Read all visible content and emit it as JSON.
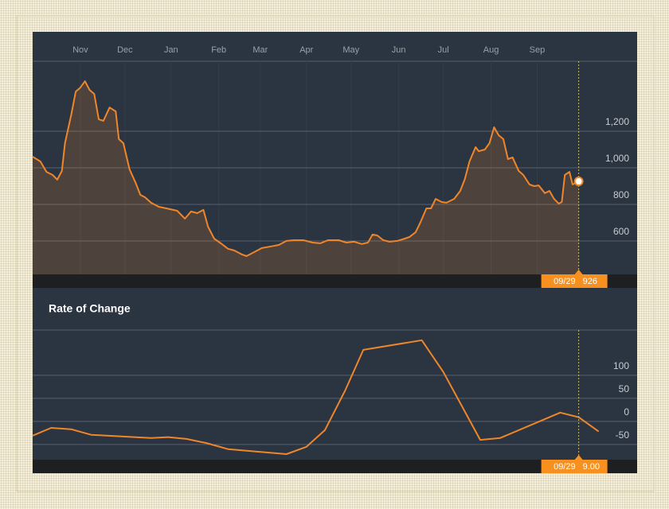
{
  "chart_data": [
    {
      "type": "line",
      "xlim": [
        0,
        393
      ],
      "ylim": [
        417,
        1583
      ],
      "xticks": [
        {
          "value": 31,
          "label": "Nov"
        },
        {
          "value": 60,
          "label": "Dec"
        },
        {
          "value": 90,
          "label": "Jan"
        },
        {
          "value": 121,
          "label": "Feb"
        },
        {
          "value": 148,
          "label": "Mar"
        },
        {
          "value": 178,
          "label": "Apr"
        },
        {
          "value": 207,
          "label": "May"
        },
        {
          "value": 238,
          "label": "Jun"
        },
        {
          "value": 267,
          "label": "Jul"
        },
        {
          "value": 298,
          "label": "Aug"
        },
        {
          "value": 328,
          "label": "Sep"
        }
      ],
      "yticks": [
        600,
        800,
        {
          "value": 1000,
          "label": "1,000"
        },
        {
          "value": 1200,
          "label": "1,200"
        }
      ],
      "grid": true,
      "series": [
        {
          "color": "#f0862a",
          "x": [
            0,
            5,
            9,
            13,
            16,
            19,
            21,
            25,
            28,
            31,
            34,
            37,
            40,
            43,
            46,
            50,
            54,
            56,
            59,
            63,
            67,
            70,
            73,
            77,
            82,
            87,
            94,
            99,
            103,
            107,
            111,
            114,
            118,
            123,
            127,
            131,
            136,
            139,
            144,
            149,
            155,
            160,
            165,
            170,
            176,
            182,
            187,
            192,
            199,
            204,
            209,
            214,
            218,
            221,
            224,
            228,
            232,
            237,
            242,
            245,
            249,
            252,
            256,
            259,
            262,
            266,
            269,
            274,
            278,
            281,
            284,
            288,
            290,
            294,
            297,
            300,
            303,
            306,
            309,
            312,
            316,
            319,
            323,
            326,
            329,
            333,
            336,
            339,
            342,
            344,
            346,
            349,
            351,
            355
          ],
          "values": [
            1061,
            1035,
            978,
            961,
            935,
            983,
            1135,
            1287,
            1417,
            1439,
            1474,
            1426,
            1404,
            1265,
            1257,
            1330,
            1309,
            1157,
            1135,
            991,
            917,
            852,
            839,
            809,
            787,
            778,
            765,
            722,
            761,
            752,
            770,
            678,
            613,
            583,
            557,
            548,
            526,
            517,
            539,
            561,
            570,
            578,
            600,
            604,
            604,
            591,
            587,
            604,
            604,
            591,
            596,
            583,
            591,
            635,
            630,
            604,
            596,
            600,
            613,
            622,
            648,
            700,
            778,
            778,
            830,
            813,
            809,
            830,
            874,
            939,
            1035,
            1113,
            1091,
            1100,
            1135,
            1222,
            1178,
            1157,
            1048,
            1057,
            983,
            961,
            909,
            900,
            904,
            861,
            874,
            830,
            804,
            813,
            961,
            978,
            909,
            926
          ]
        }
      ],
      "cursor": {
        "x": 355,
        "label": "09/29",
        "value": 926
      }
    },
    {
      "type": "line",
      "title": "Rate of Change",
      "xlim": [
        0,
        393
      ],
      "ylim": [
        -83,
        198
      ],
      "yticks": [
        -50,
        0,
        50,
        100
      ],
      "grid": true,
      "series": [
        {
          "color": "#f0862a",
          "x": [
            0,
            12,
            25,
            38,
            77,
            88,
            100,
            113,
            127,
            165,
            178,
            190,
            203,
            215,
            253,
            267,
            291,
            304,
            343,
            355,
            368
          ],
          "values": [
            -31,
            -14,
            -17,
            -29,
            -36,
            -34,
            -38,
            -47,
            -60,
            -71,
            -55,
            -19,
            66,
            155,
            176,
            107,
            -40,
            -36,
            19,
            9,
            -22
          ]
        }
      ],
      "cursor": {
        "x": 355,
        "label": "09/29",
        "value": {
          "value": 9,
          "label": "9.00"
        }
      }
    }
  ]
}
